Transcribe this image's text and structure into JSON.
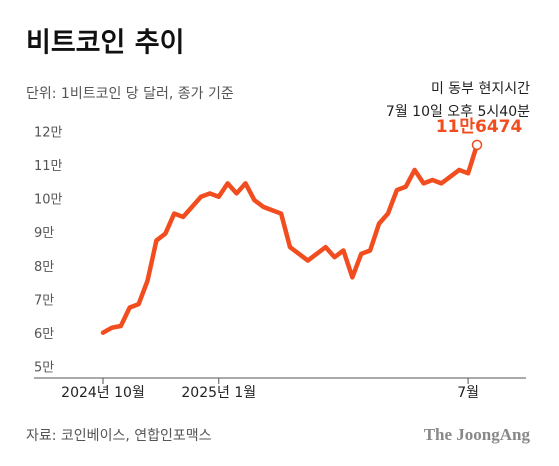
{
  "chart_data": {
    "type": "line",
    "title": "비트코인 추이",
    "subtitle": "단위: 1비트코인 당 달러, 종가 기준",
    "note_lines": [
      "미 동부 현지시간",
      "7월 10일 오후 5시40분"
    ],
    "annotation": "11만6474",
    "source": "자료: 코인베이스, 연합인포맥스",
    "brand": "The JoongAng",
    "color": "#f24d1f",
    "categories": [
      "2024년 10월",
      null,
      null,
      null,
      null,
      null,
      null,
      null,
      null,
      null,
      null,
      null,
      null,
      "2025년 1월",
      null,
      null,
      null,
      null,
      null,
      null,
      null,
      null,
      null,
      null,
      null,
      null,
      null,
      null,
      null,
      null,
      null,
      null,
      null,
      null,
      null,
      null,
      null,
      null,
      null,
      null,
      null,
      "7월",
      null
    ],
    "values": [
      6.05,
      6.2,
      6.25,
      6.8,
      6.9,
      7.6,
      8.8,
      9.0,
      9.6,
      9.5,
      9.8,
      10.1,
      10.2,
      10.1,
      10.5,
      10.2,
      10.5,
      10.0,
      9.8,
      9.7,
      9.6,
      8.6,
      8.4,
      8.2,
      8.4,
      8.6,
      8.3,
      8.5,
      7.7,
      8.4,
      8.5,
      9.3,
      9.6,
      10.3,
      10.4,
      10.9,
      10.5,
      10.6,
      10.5,
      10.7,
      10.9,
      10.8,
      11.6474
    ],
    "ylim": [
      4.7,
      12.4
    ],
    "yticks": [
      {
        "value": 5,
        "label": "5만"
      },
      {
        "value": 6,
        "label": "6만"
      },
      {
        "value": 7,
        "label": "7만"
      },
      {
        "value": 8,
        "label": "8만"
      },
      {
        "value": 9,
        "label": "9만"
      },
      {
        "value": 10,
        "label": "10만"
      },
      {
        "value": 11,
        "label": "11만"
      },
      {
        "value": 12,
        "label": "12만"
      }
    ]
  }
}
